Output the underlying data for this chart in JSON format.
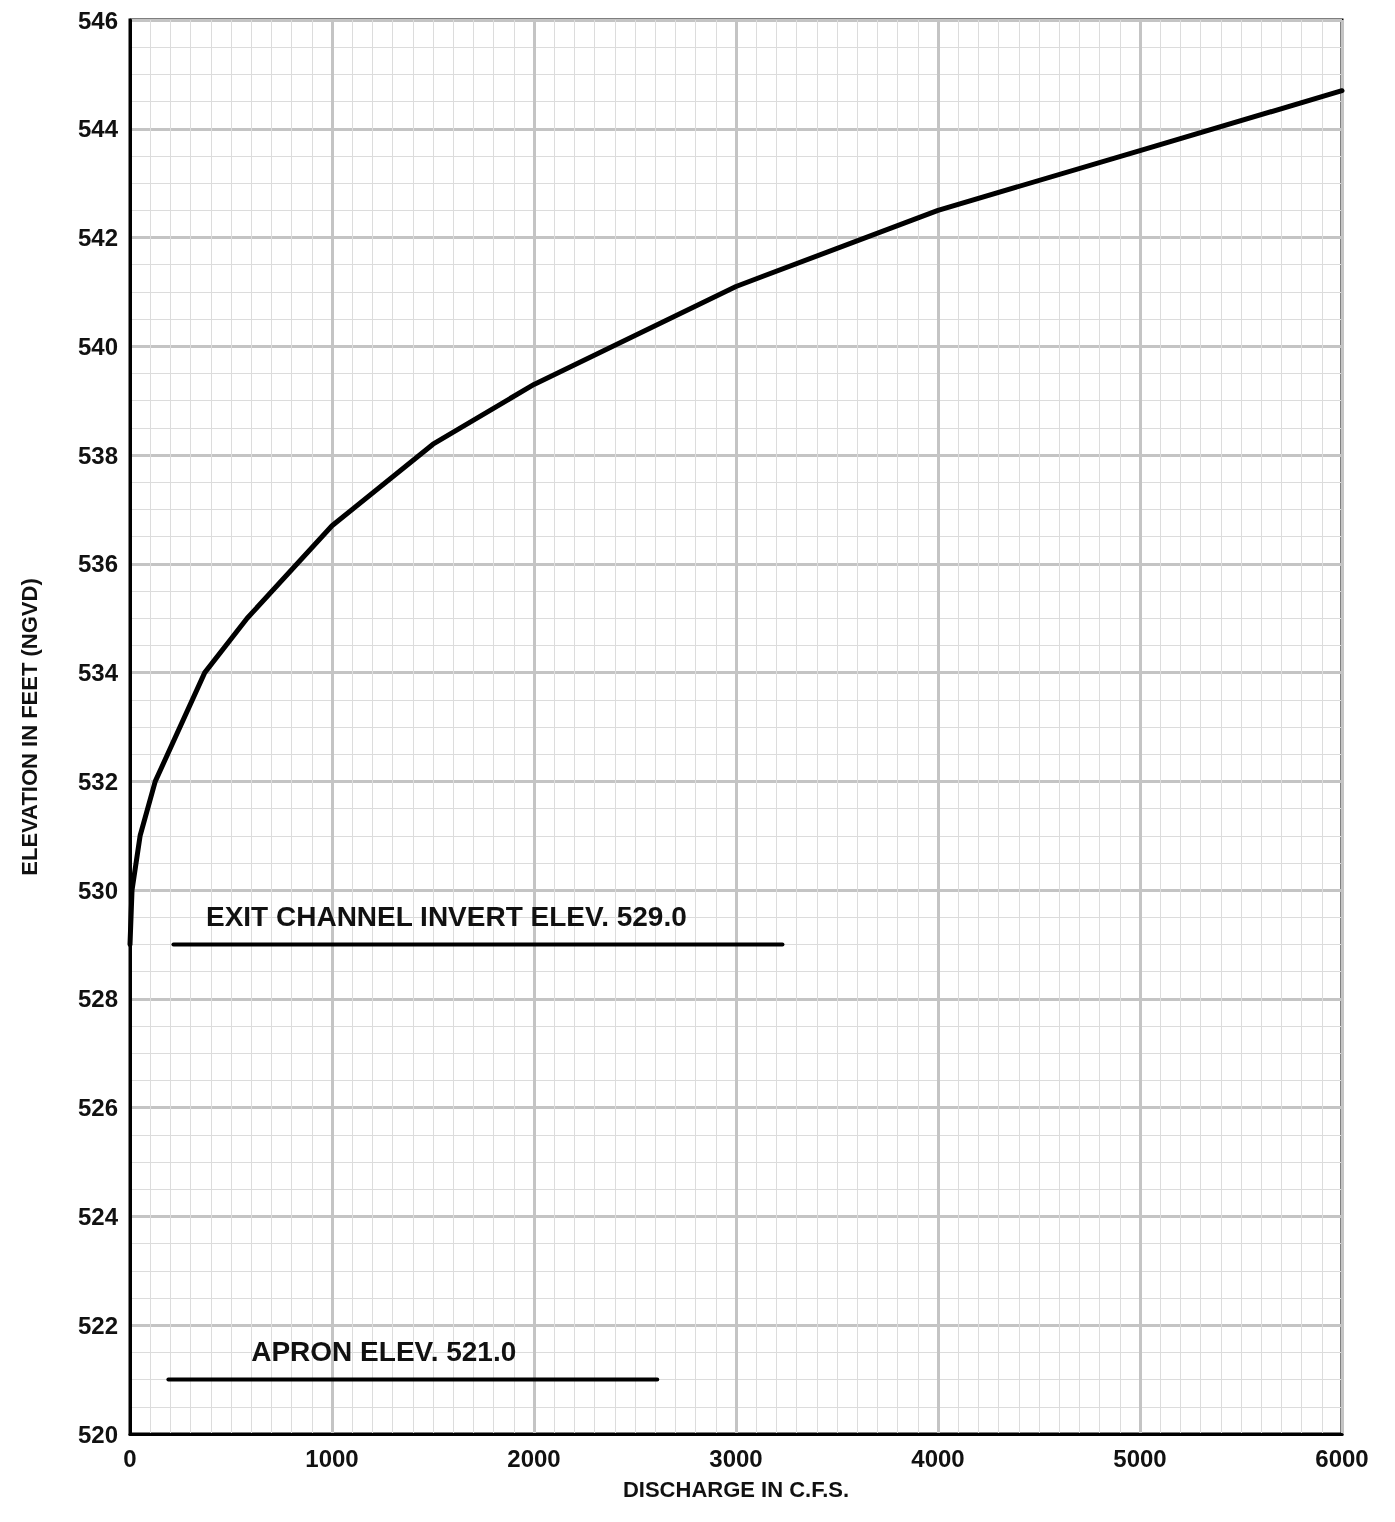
{
  "chart_data": {
    "type": "line",
    "xlabel": "DISCHARGE IN C.F.S.",
    "ylabel": "ELEVATION IN FEET (NGVD)",
    "xlim": [
      0,
      6000
    ],
    "xticks": [
      0,
      1000,
      2000,
      3000,
      4000,
      5000,
      6000
    ],
    "ylim": [
      520,
      546
    ],
    "yticks": [
      520,
      522,
      524,
      526,
      528,
      530,
      532,
      534,
      536,
      538,
      540,
      542,
      544,
      546
    ],
    "grid": true,
    "marker": "none",
    "line_style": "solid",
    "series": [
      {
        "color": "#000000",
        "x": [
          0,
          10,
          50,
          125,
          370,
          580,
          1000,
          1500,
          2000,
          3000,
          4000,
          5000,
          6000
        ],
        "values": [
          529,
          530,
          531,
          532,
          534,
          535,
          536.7,
          538.2,
          539.3,
          541.1,
          542.5,
          543.6,
          544.7
        ]
      },
      {
        "color": "#000000",
        "x": [
          215,
          3230
        ],
        "values": [
          529,
          529
        ]
      },
      {
        "color": "#000000",
        "x": [
          190,
          2610
        ],
        "values": [
          521,
          521
        ]
      }
    ],
    "annotations": [
      {
        "text": "EXIT CHANNEL INVERT ELEV. 529.0",
        "x": 376,
        "y": 529
      },
      {
        "text": "APRON ELEV. 521.0",
        "x": 600,
        "y": 521
      }
    ]
  }
}
